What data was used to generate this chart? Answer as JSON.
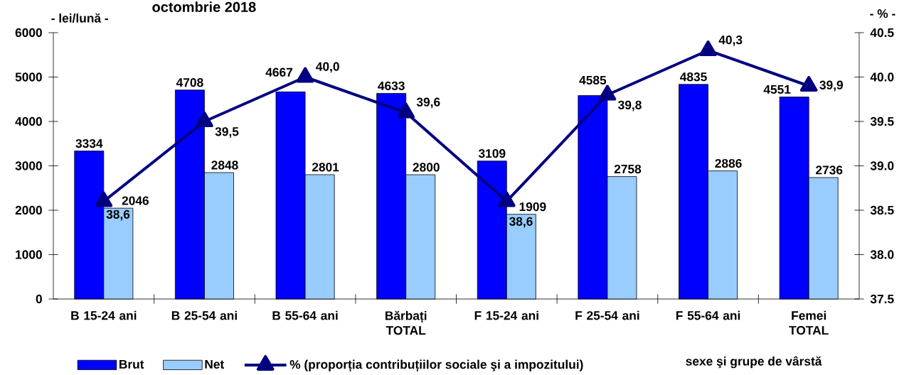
{
  "chart_data": {
    "type": "bar",
    "title": "octombrie 2018",
    "categories": [
      "B 15-24 ani",
      "B 25-54 ani",
      "B 55-64 ani",
      "Bărbați TOTAL",
      "F 15-24 ani",
      "F 25-54 ani",
      "F 55-64 ani",
      "Femei TOTAL"
    ],
    "xlabel": "sexe şi grupe de vârstă",
    "ylabel": "- lei/lună -",
    "y2label": "- % -",
    "ylim": [
      0,
      6000
    ],
    "yticks": [
      0,
      1000,
      2000,
      3000,
      4000,
      5000,
      6000
    ],
    "y2lim": [
      37.5,
      40.5
    ],
    "y2ticks": [
      37.5,
      {
        "value": 38,
        "label": "38.0"
      },
      38.5,
      {
        "value": 39,
        "label": "39.0"
      },
      39.5,
      {
        "value": 40,
        "label": "40.0"
      },
      40.5
    ],
    "legend": "bottom",
    "series": [
      {
        "name": "Brut",
        "color": "#0000ff",
        "values": [
          3334,
          4708,
          4667,
          4633,
          3109,
          4585,
          4835,
          4551
        ],
        "value_labels": [
          "3334",
          "4708",
          "4667",
          "4633",
          "3109",
          "4585",
          "4835",
          "4551"
        ]
      },
      {
        "name": "Net",
        "color": "#99ccff",
        "values": [
          2046,
          2848,
          2801,
          2800,
          1909,
          2758,
          2886,
          2736
        ],
        "value_labels": [
          "2046",
          "2848",
          "2801",
          "2800",
          "1909",
          "2758",
          "2886",
          "2736"
        ]
      },
      {
        "name": "% (proporția contribuțiilor sociale şi a impozitului)",
        "type": "line",
        "axis": "y2",
        "color": "#000080",
        "marker": "triangle",
        "line_style": "solid",
        "values": [
          38.6,
          39.5,
          40.0,
          39.6,
          38.6,
          39.8,
          40.3,
          39.9
        ],
        "value_labels": [
          "38,6",
          "39,5",
          "40,0",
          "39,6",
          "38,6",
          "39,8",
          "40,3",
          "39,9"
        ]
      }
    ]
  }
}
